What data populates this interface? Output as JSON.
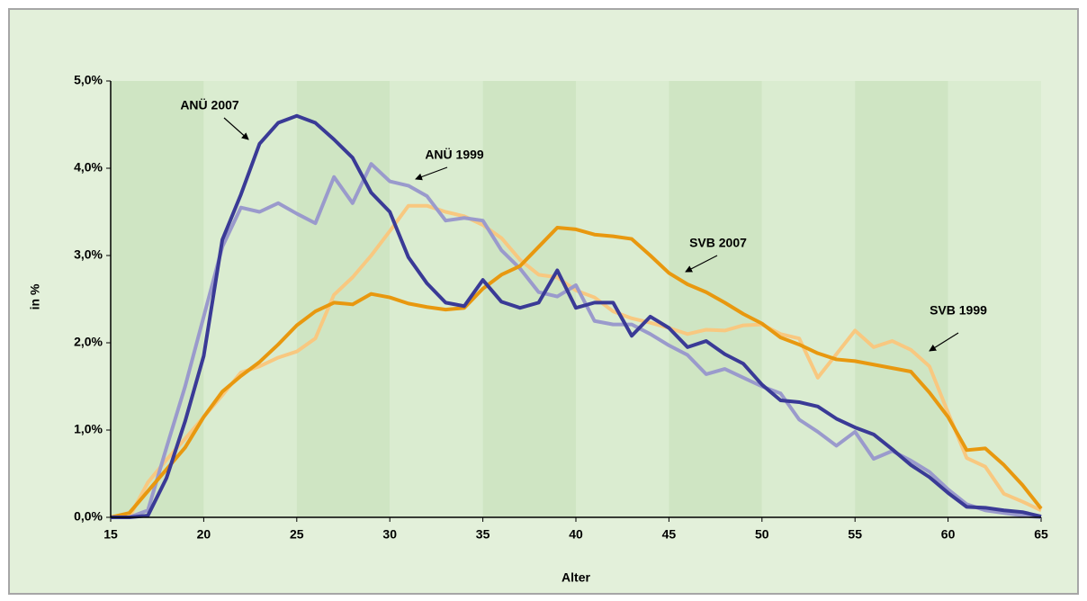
{
  "chart_data": {
    "type": "line",
    "x": [
      15,
      16,
      17,
      18,
      19,
      20,
      21,
      22,
      23,
      24,
      25,
      26,
      27,
      28,
      29,
      30,
      31,
      32,
      33,
      34,
      35,
      36,
      37,
      38,
      39,
      40,
      41,
      42,
      43,
      44,
      45,
      46,
      47,
      48,
      49,
      50,
      51,
      52,
      53,
      54,
      55,
      56,
      57,
      58,
      59,
      60,
      61,
      62,
      63,
      64,
      65
    ],
    "xlim": [
      15,
      65
    ],
    "xticks": [
      15,
      20,
      25,
      30,
      35,
      40,
      45,
      50,
      55,
      60,
      65
    ],
    "ylim": [
      0,
      5
    ],
    "yticks": [
      {
        "value": 0,
        "label": "0,0%"
      },
      {
        "value": 1,
        "label": "1,0%"
      },
      {
        "value": 2,
        "label": "2,0%"
      },
      {
        "value": 3,
        "label": "3,0%"
      },
      {
        "value": 4,
        "label": "4,0%"
      },
      {
        "value": 5,
        "label": "5,0%"
      }
    ],
    "x_label": "Alter",
    "y_label": "in %",
    "series": [
      {
        "name": "SVB 1999",
        "color": "#f8c880",
        "values": [
          0,
          0,
          0.4,
          0.66,
          0.9,
          1.15,
          1.4,
          1.66,
          1.73,
          1.83,
          1.9,
          2.05,
          2.55,
          2.75,
          3.0,
          3.28,
          3.57,
          3.57,
          3.5,
          3.45,
          3.35,
          3.2,
          2.95,
          2.78,
          2.75,
          2.6,
          2.52,
          2.36,
          2.28,
          2.23,
          2.17,
          2.1,
          2.15,
          2.14,
          2.2,
          2.21,
          2.1,
          2.05,
          1.6,
          1.87,
          2.14,
          1.95,
          2.02,
          1.92,
          1.73,
          1.2,
          0.68,
          0.58,
          0.27,
          0.18,
          0.08
        ]
      },
      {
        "name": "ANÜ 1999",
        "color": "#9a9acc",
        "values": [
          0,
          0,
          0.08,
          0.8,
          1.5,
          2.3,
          3.1,
          3.55,
          3.5,
          3.6,
          3.48,
          3.37,
          3.9,
          3.6,
          4.05,
          3.85,
          3.8,
          3.68,
          3.4,
          3.43,
          3.4,
          3.06,
          2.85,
          2.58,
          2.53,
          2.66,
          2.25,
          2.21,
          2.21,
          2.1,
          1.97,
          1.86,
          1.64,
          1.7,
          1.6,
          1.5,
          1.42,
          1.12,
          0.98,
          0.82,
          0.98,
          0.67,
          0.76,
          0.65,
          0.52,
          0.32,
          0.15,
          0.08,
          0.05,
          0.02,
          0
        ]
      },
      {
        "name": "SVB 2007",
        "color": "#e8980f",
        "values": [
          0,
          0.05,
          0.3,
          0.55,
          0.8,
          1.15,
          1.44,
          1.62,
          1.78,
          1.98,
          2.2,
          2.36,
          2.46,
          2.44,
          2.56,
          2.52,
          2.45,
          2.41,
          2.38,
          2.4,
          2.62,
          2.78,
          2.88,
          3.1,
          3.32,
          3.3,
          3.24,
          3.22,
          3.19,
          3.0,
          2.8,
          2.67,
          2.58,
          2.46,
          2.33,
          2.22,
          2.06,
          1.98,
          1.88,
          1.81,
          1.79,
          1.75,
          1.71,
          1.67,
          1.43,
          1.15,
          0.77,
          0.79,
          0.6,
          0.37,
          0.1
        ]
      },
      {
        "name": "ANÜ 2007",
        "color": "#3a3a96",
        "values": [
          0,
          0,
          0.02,
          0.45,
          1.1,
          1.85,
          3.18,
          3.7,
          4.28,
          4.52,
          4.6,
          4.52,
          4.33,
          4.12,
          3.72,
          3.5,
          2.98,
          2.68,
          2.46,
          2.42,
          2.72,
          2.47,
          2.4,
          2.46,
          2.83,
          2.4,
          2.46,
          2.46,
          2.08,
          2.3,
          2.17,
          1.95,
          2.02,
          1.87,
          1.76,
          1.52,
          1.34,
          1.32,
          1.27,
          1.13,
          1.03,
          0.95,
          0.78,
          0.6,
          0.46,
          0.28,
          0.12,
          0.11,
          0.08,
          0.06,
          0.01
        ]
      }
    ]
  }
}
